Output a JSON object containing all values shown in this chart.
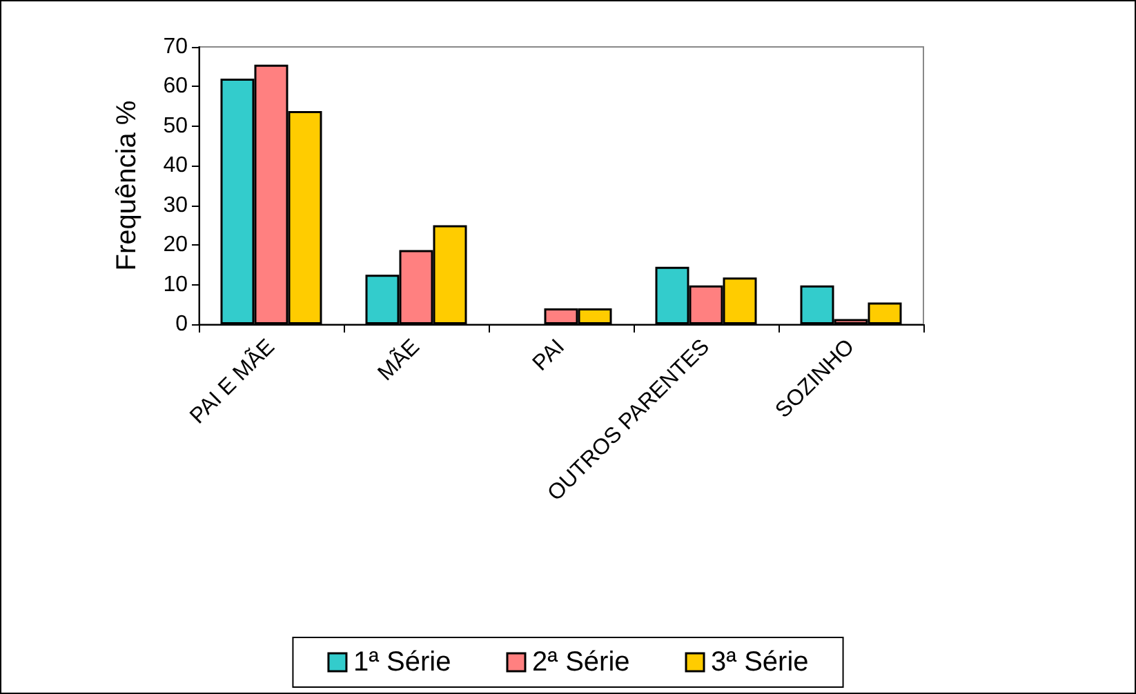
{
  "chart_data": {
    "type": "bar",
    "ylabel": "Frequência %",
    "categories": [
      "PAI E MÃE",
      "MÃE",
      "PAI",
      "OUTROS PARENTES",
      "SOZINHO"
    ],
    "series": [
      {
        "name": "1ª Série",
        "color": "#33cccc",
        "values": [
          62,
          12.5,
          null,
          14.5,
          9.8
        ]
      },
      {
        "name": "2ª Série",
        "color": "#ff8080",
        "values": [
          65.5,
          18.7,
          4,
          9.8,
          1.3
        ]
      },
      {
        "name": "3ª Série",
        "color": "#ffcc00",
        "values": [
          53.8,
          25,
          4,
          11.8,
          5.5
        ]
      }
    ],
    "ylim": [
      0,
      70
    ],
    "yticks": [
      0,
      10,
      20,
      30,
      40,
      50,
      60,
      70
    ],
    "grid": false,
    "legend": "bottom"
  }
}
